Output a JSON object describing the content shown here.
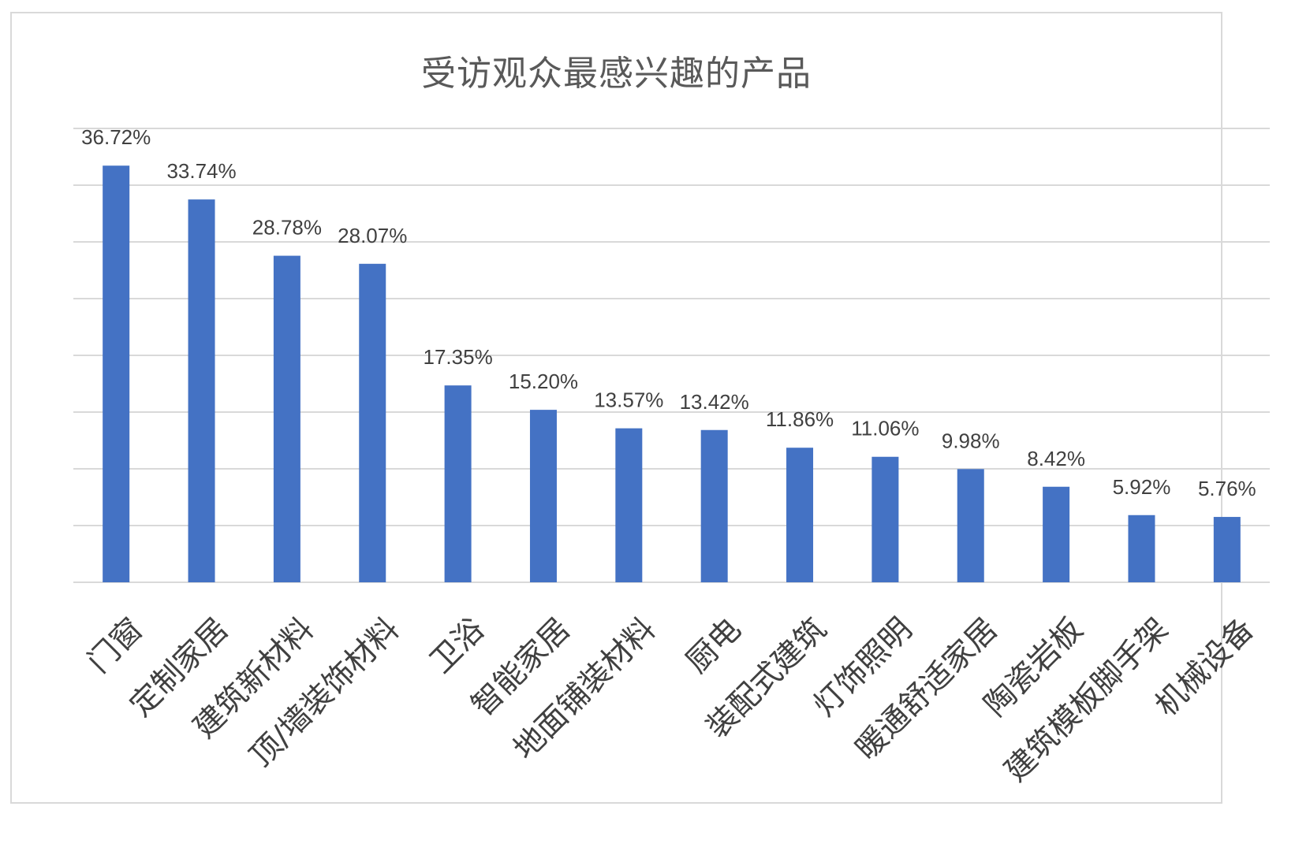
{
  "chart_data": {
    "type": "bar",
    "title": "受访观众最感兴趣的产品",
    "xlabel": "",
    "ylabel": "",
    "categories": [
      "门窗",
      "定制家居",
      "建筑新材料",
      "顶/墙装饰材料",
      "卫浴",
      "智能家居",
      "地面铺装材料",
      "厨电",
      "装配式建筑",
      "灯饰照明",
      "暖通舒适家居",
      "陶瓷岩板",
      "建筑模板脚手架",
      "机械设备"
    ],
    "values": [
      36.72,
      33.74,
      28.78,
      28.07,
      17.35,
      15.2,
      13.57,
      13.42,
      11.86,
      11.06,
      9.98,
      8.42,
      5.92,
      5.76
    ],
    "data_labels": [
      "36.72%",
      "33.74%",
      "28.78%",
      "28.07%",
      "17.35%",
      "15.20%",
      "13.57%",
      "13.42%",
      "11.86%",
      "11.06%",
      "9.98%",
      "8.42%",
      "5.92%",
      "5.76%"
    ],
    "ylim": [
      0,
      40
    ],
    "y_axis_visible": false,
    "grid": true,
    "colors": {
      "bar": "#4472c4",
      "grid": "#d9d9d9",
      "text": "#404040",
      "title": "#595959"
    }
  }
}
